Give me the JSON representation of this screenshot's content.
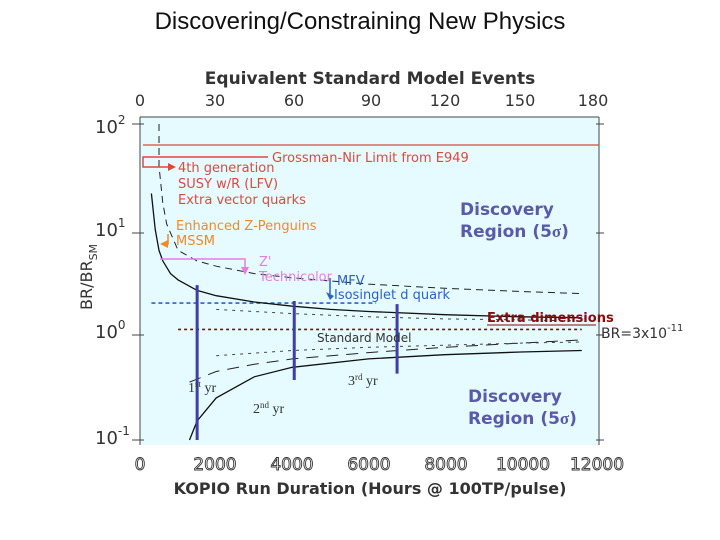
{
  "slide_title": "Discovering/Constraining New Physics",
  "colors": {
    "plot_bg": "#e6fbff",
    "discovery": "#5a5aa8",
    "red": "#e0483c",
    "orange": "#ef8a28",
    "magenta": "#e37fe0",
    "blue": "#2c62c8",
    "dotted_red": "#8b0a0a",
    "year_bar": "#3e3ea6"
  },
  "chart_data": {
    "type": "line",
    "title": "Equivalent Standard Model Events",
    "xlabel": "KOPIO Run Duration (Hours @ 100TP/pulse)",
    "ylabel_main": "BR/BR",
    "ylabel_sub": "SM",
    "x_range": [
      0,
      12000
    ],
    "y_log_range": [
      -1,
      2
    ],
    "bottom_ticks": [
      "0",
      "2000",
      "4000",
      "6000",
      "8000",
      "10000",
      "12000"
    ],
    "bottom_tick_values": [
      0,
      2000,
      4000,
      6000,
      8000,
      10000,
      12000
    ],
    "top_ticks": [
      "0",
      "30",
      "60",
      "90",
      "120",
      "150",
      "180"
    ],
    "y_ticks": [
      {
        "base": "10",
        "exp": "-1",
        "value": -1
      },
      {
        "base": "10",
        "exp": "0",
        "value": 0
      },
      {
        "base": "10",
        "exp": "1",
        "value": 1
      },
      {
        "base": "10",
        "exp": "2",
        "value": 2
      }
    ],
    "upper_bound_curve": [
      [
        300,
        1.34
      ],
      [
        400,
        1.0
      ],
      [
        500,
        0.8
      ],
      [
        600,
        0.7
      ],
      [
        800,
        0.58
      ],
      [
        1000,
        0.52
      ],
      [
        1500,
        0.42
      ],
      [
        2000,
        0.37
      ],
      [
        3000,
        0.31
      ],
      [
        4000,
        0.27
      ],
      [
        5000,
        0.24
      ],
      [
        6000,
        0.22
      ],
      [
        8000,
        0.19
      ],
      [
        10000,
        0.17
      ],
      [
        11600,
        0.16
      ]
    ],
    "lower_bound_curve": [
      [
        1300,
        -1.0
      ],
      [
        1500,
        -0.82
      ],
      [
        2000,
        -0.6
      ],
      [
        3000,
        -0.4
      ],
      [
        4000,
        -0.31
      ],
      [
        6000,
        -0.23
      ],
      [
        8000,
        -0.19
      ],
      [
        10000,
        -0.165
      ],
      [
        11600,
        -0.15
      ]
    ],
    "discovery_upper_curve": [
      [
        500,
        2.0
      ],
      [
        500,
        1.6
      ],
      [
        600,
        1.25
      ],
      [
        700,
        1.05
      ],
      [
        1000,
        0.8
      ],
      [
        1500,
        0.7
      ],
      [
        2000,
        0.65
      ],
      [
        3000,
        0.58
      ],
      [
        4000,
        0.54
      ],
      [
        6000,
        0.48
      ],
      [
        8000,
        0.44
      ],
      [
        10000,
        0.41
      ],
      [
        11600,
        0.39
      ]
    ],
    "discovery_lower_curve": [
      [
        1300,
        -0.45
      ],
      [
        2000,
        -0.35
      ],
      [
        3000,
        -0.28
      ],
      [
        4000,
        -0.23
      ],
      [
        6000,
        -0.17
      ],
      [
        8000,
        -0.12
      ],
      [
        10000,
        -0.08
      ],
      [
        11600,
        -0.05
      ]
    ],
    "inner_dashed_upper": [
      [
        2000,
        0.24
      ],
      [
        4000,
        0.2
      ],
      [
        6000,
        0.17
      ],
      [
        8000,
        0.15
      ],
      [
        10000,
        0.14
      ],
      [
        11600,
        0.13
      ]
    ],
    "inner_dashed_lower": [
      [
        2000,
        -0.2
      ],
      [
        4000,
        -0.15
      ],
      [
        6000,
        -0.12
      ],
      [
        8000,
        -0.1
      ],
      [
        10000,
        -0.08
      ],
      [
        11600,
        -0.07
      ]
    ],
    "year_bars": [
      {
        "x": 1500,
        "top": 0.47,
        "bottom": -1.0
      },
      {
        "x": 4050,
        "top": 0.32,
        "bottom": -0.43
      },
      {
        "x": 6750,
        "top": 0.29,
        "bottom": -0.37
      }
    ],
    "dotted_red_level": 0.05,
    "dotted_blue_level": 0.3,
    "annotations": {
      "grossman_nir": "Grossman-Nir Limit from E949",
      "fourth_gen": [
        "4th generation",
        "SUSY w/R (LFV)",
        "Extra vector quarks"
      ],
      "zpenguin": [
        "Enhanced Z-Penguins",
        "MSSM"
      ],
      "zprime": [
        "Z'",
        "Technicolor"
      ],
      "mfv": [
        "MFV",
        "Isosinglet d quark"
      ],
      "extra_dim": "Extra dimensions",
      "br": "BR=3x10",
      "br_exp": "-11",
      "standard_model": "Standard Model",
      "discovery_title": "Discovery",
      "discovery_region_word": "Region (5",
      "sigma": "σ",
      "close_paren": ")",
      "year1_num": "1",
      "year1_sup": "st",
      "year1_unit": " yr",
      "year2_num": "2",
      "year2_sup": "nd",
      "year2_unit": " yr",
      "year3_num": "3",
      "year3_sup": "rd",
      "year3_unit": " yr"
    }
  }
}
